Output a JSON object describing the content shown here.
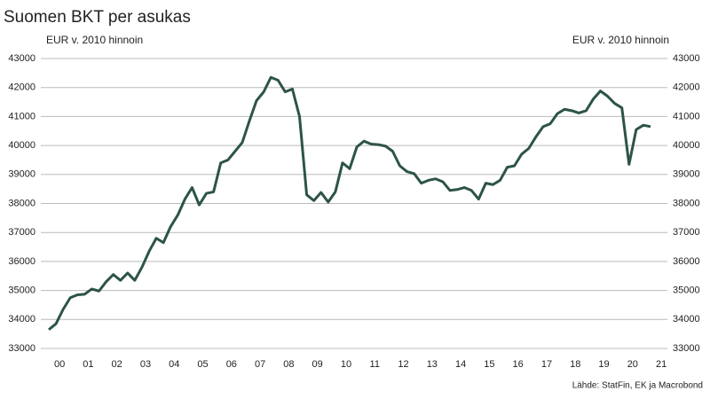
{
  "chart_data": {
    "type": "line",
    "title": "Suomen BKT per asukas",
    "y_label": "EUR v. 2010 hinnoin",
    "y2_label": "EUR v. 2010 hinnoin",
    "source": "Lähde: StatFin, EK ja Macrobond",
    "categories": [
      "00",
      null,
      null,
      null,
      "01",
      null,
      null,
      null,
      "02",
      null,
      null,
      null,
      "03",
      null,
      null,
      null,
      "04",
      null,
      null,
      null,
      "05",
      null,
      null,
      null,
      "06",
      null,
      null,
      null,
      "07",
      null,
      null,
      null,
      "08",
      null,
      null,
      null,
      "09",
      null,
      null,
      null,
      "10",
      null,
      null,
      null,
      "11",
      null,
      null,
      null,
      "12",
      null,
      null,
      null,
      "13",
      null,
      null,
      null,
      "14",
      null,
      null,
      null,
      "15",
      null,
      null,
      null,
      "16",
      null,
      null,
      null,
      "17",
      null,
      null,
      null,
      "18",
      null,
      null,
      null,
      "19",
      null,
      null,
      null,
      "20",
      null,
      null,
      null,
      "21"
    ],
    "values": [
      33650,
      33850,
      34350,
      34750,
      34850,
      34870,
      35050,
      34980,
      35300,
      35550,
      35350,
      35600,
      35350,
      35800,
      36350,
      36800,
      36650,
      37200,
      37600,
      38150,
      38550,
      37950,
      38350,
      38400,
      39400,
      39500,
      39800,
      40100,
      40850,
      41550,
      41850,
      42350,
      42250,
      41850,
      41950,
      41000,
      38300,
      38100,
      38380,
      38050,
      38400,
      39400,
      39200,
      39950,
      40150,
      40050,
      40030,
      39980,
      39800,
      39300,
      39100,
      39030,
      38700,
      38800,
      38850,
      38750,
      38450,
      38480,
      38550,
      38450,
      38150,
      38700,
      38650,
      38800,
      39250,
      39300,
      39700,
      39900,
      40300,
      40650,
      40750,
      41100,
      41250,
      41200,
      41120,
      41200,
      41600,
      41880,
      41700,
      41450,
      41300,
      39350,
      40550,
      40700,
      40650
    ],
    "color": "#2d5446",
    "ylim": [
      33000,
      43000
    ],
    "yticks": [
      33000,
      34000,
      35000,
      36000,
      37000,
      38000,
      39000,
      40000,
      41000,
      42000,
      43000
    ],
    "y2lim": [
      33000,
      43000
    ],
    "y2ticks": [
      33000,
      34000,
      35000,
      36000,
      37000,
      38000,
      39000,
      40000,
      41000,
      42000,
      43000
    ],
    "grid": true
  }
}
